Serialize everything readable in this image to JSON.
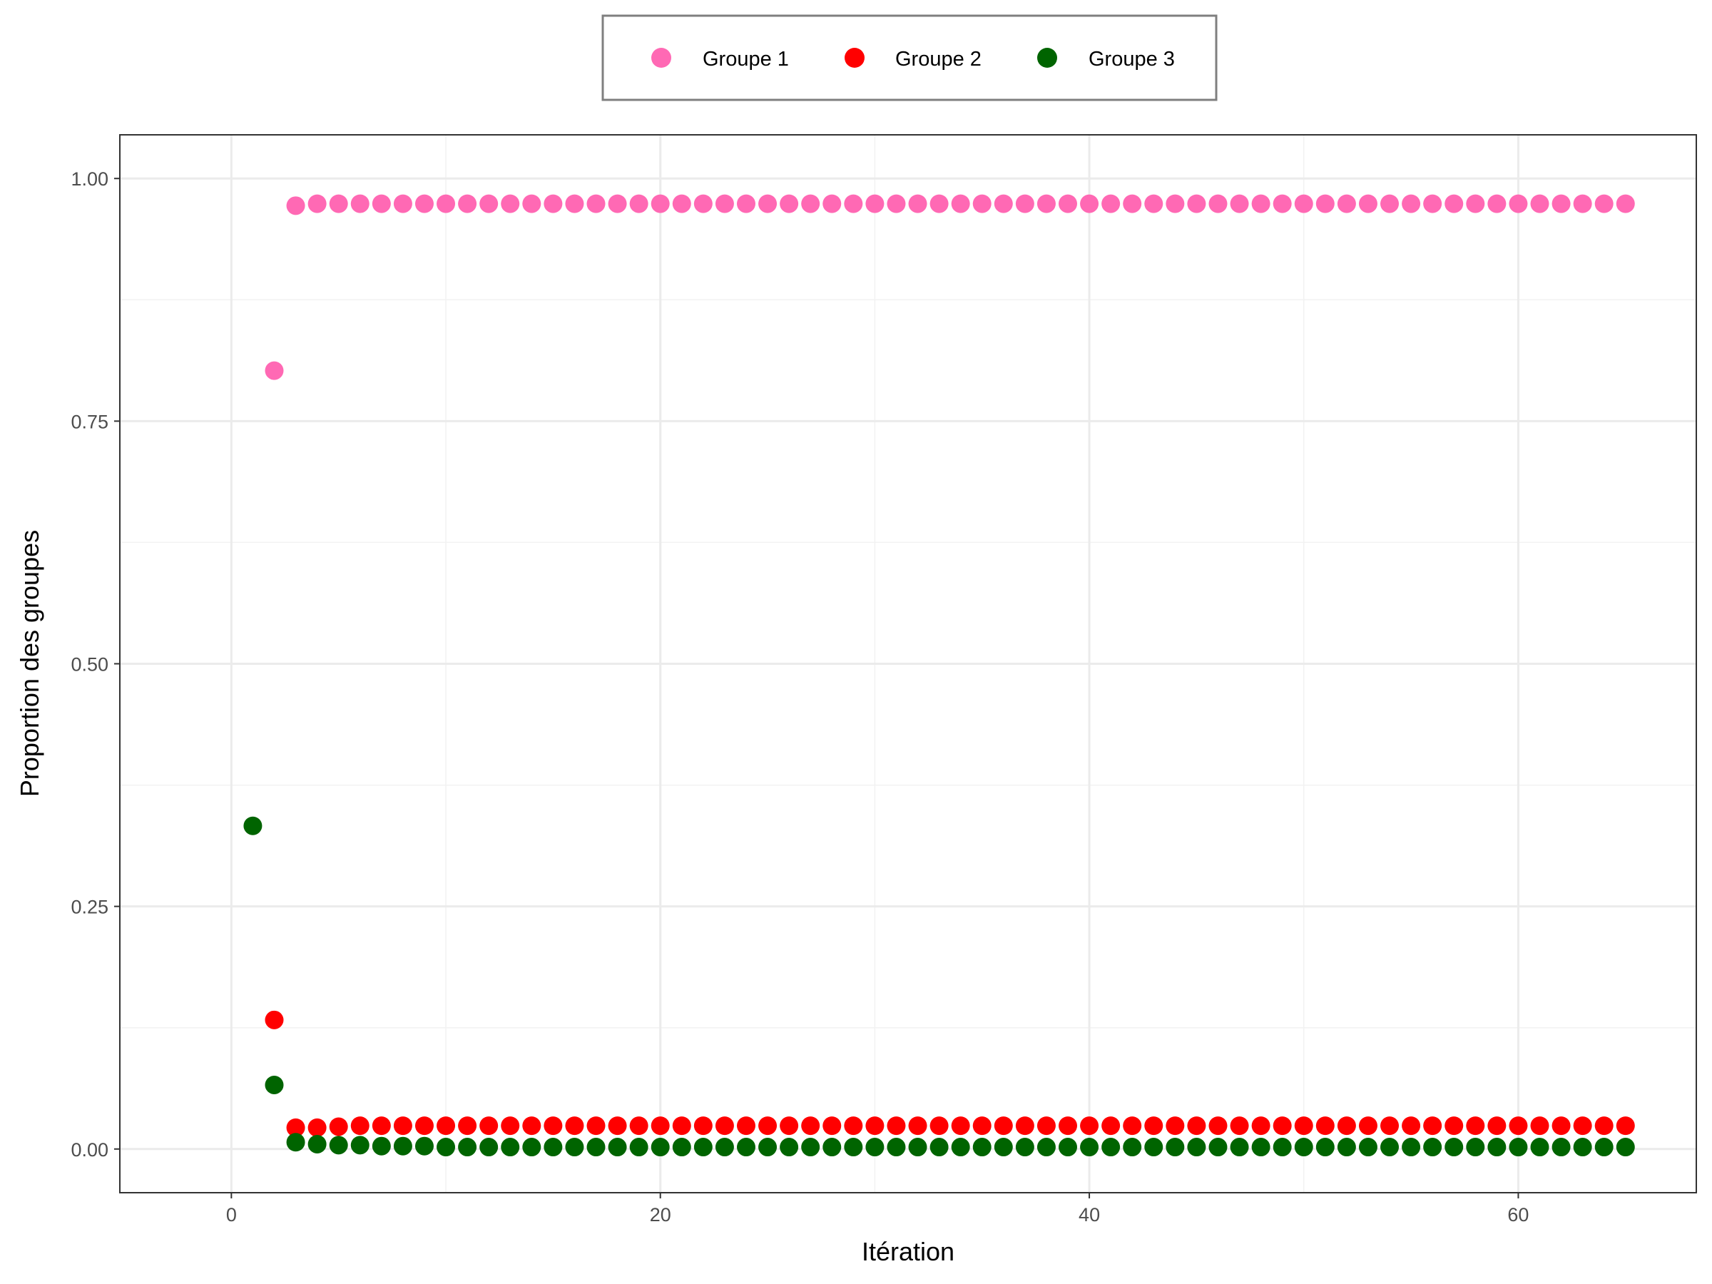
{
  "chart_data": {
    "type": "scatter",
    "title": "",
    "xlabel": "Itération",
    "ylabel": "Proportion des groupes",
    "xlim": [
      -5.2,
      68.3
    ],
    "ylim": [
      -0.045,
      1.045
    ],
    "xticks": [
      0,
      20,
      40,
      60
    ],
    "yticks": [
      0.0,
      0.25,
      0.5,
      0.75,
      1.0
    ],
    "xtick_labels": [
      "0",
      "20",
      "40",
      "60"
    ],
    "ytick_labels": [
      "0.00",
      "0.25",
      "0.50",
      "0.75",
      "1.00"
    ],
    "grid": true,
    "legend_position": "top",
    "iterations": {
      "start": 1,
      "end": 65
    },
    "series": [
      {
        "name": "Groupe 1",
        "color": "#ff69b4",
        "points": [
          [
            2,
            0.802
          ],
          [
            3,
            0.972
          ]
        ],
        "plateau": {
          "from": 4,
          "to": 65,
          "value": 0.974
        }
      },
      {
        "name": "Groupe 2",
        "color": "#ff0000",
        "points": [
          [
            2,
            0.133
          ],
          [
            3,
            0.022
          ],
          [
            4,
            0.022
          ],
          [
            5,
            0.023
          ]
        ],
        "plateau": {
          "from": 6,
          "to": 65,
          "value": 0.024
        }
      },
      {
        "name": "Groupe 3",
        "color": "#006400",
        "points": [
          [
            1,
            0.333
          ],
          [
            2,
            0.066
          ],
          [
            3,
            0.007
          ],
          [
            4,
            0.005
          ],
          [
            5,
            0.004
          ],
          [
            6,
            0.004
          ],
          [
            7,
            0.003
          ],
          [
            8,
            0.003
          ],
          [
            9,
            0.003
          ]
        ],
        "plateau": {
          "from": 10,
          "to": 65,
          "value": 0.002
        }
      }
    ]
  }
}
